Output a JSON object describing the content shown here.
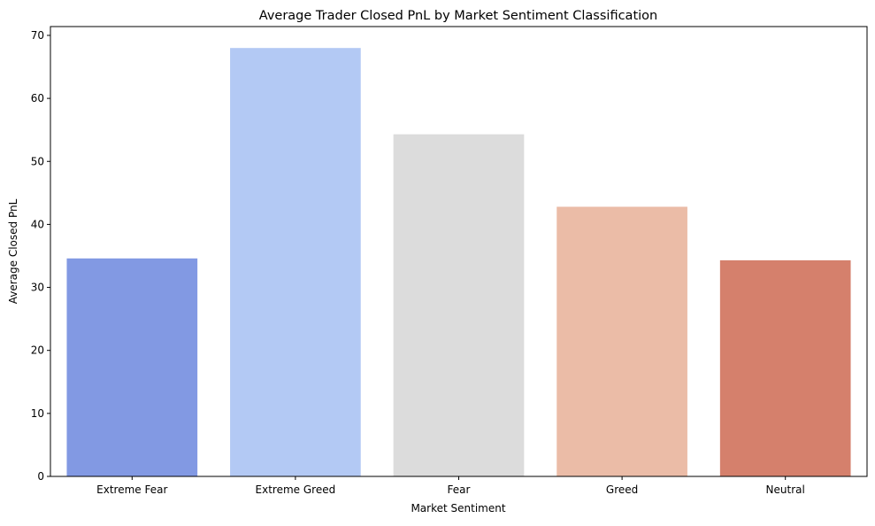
{
  "chart_data": {
    "type": "bar",
    "title": "Average Trader Closed PnL by Market Sentiment Classification",
    "xlabel": "Market Sentiment",
    "ylabel": "Average Closed PnL",
    "categories": [
      "Extreme Fear",
      "Extreme Greed",
      "Fear",
      "Greed",
      "Neutral"
    ],
    "values": [
      34.6,
      68.0,
      54.3,
      42.8,
      34.3
    ],
    "colors": [
      "#8299e3",
      "#b3c9f4",
      "#dcdcdc",
      "#ebbca7",
      "#d5806c"
    ],
    "ylim": [
      0,
      71.4
    ],
    "yticks": [
      0,
      10,
      20,
      30,
      40,
      50,
      60,
      70
    ],
    "grid": false,
    "legend": "none"
  }
}
